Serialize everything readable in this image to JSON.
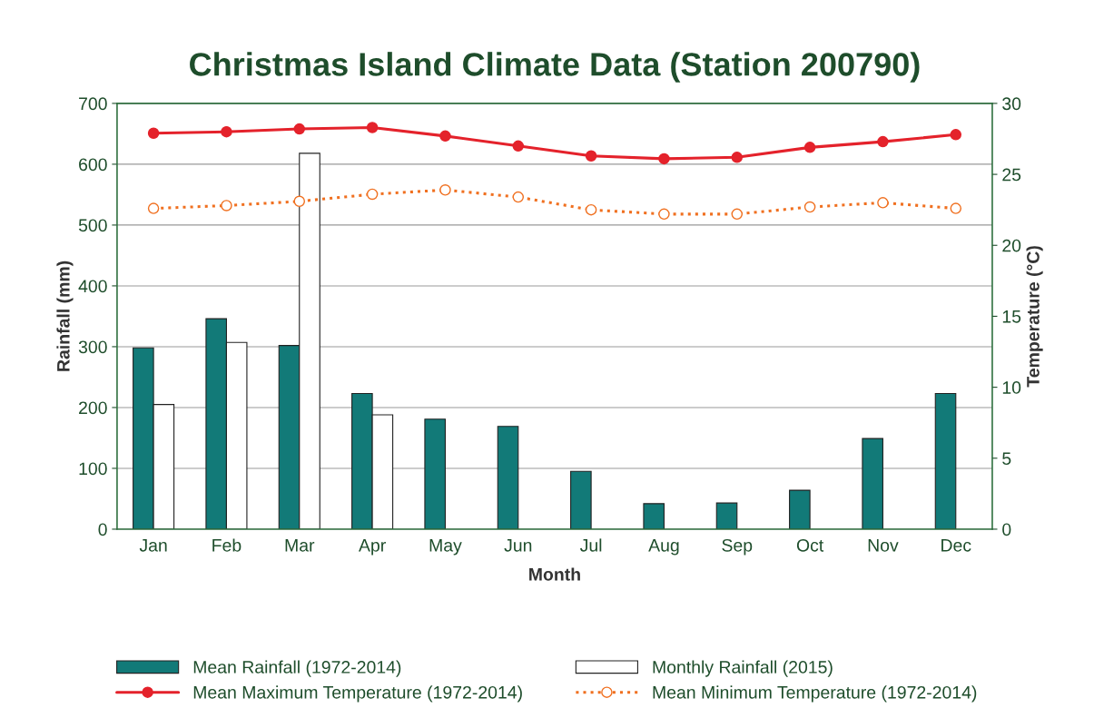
{
  "chart_data": {
    "type": "bar",
    "title": "Christmas Island Climate Data (Station 200790)",
    "xlabel": "Month",
    "ylabel": "Rainfall (mm)",
    "y2label": "Temperature (°C)",
    "categories": [
      "Jan",
      "Feb",
      "Mar",
      "Apr",
      "May",
      "Jun",
      "Jul",
      "Aug",
      "Sep",
      "Oct",
      "Nov",
      "Dec"
    ],
    "series": [
      {
        "name": "Mean Rainfall (1972-2014)",
        "color": "#127a78",
        "values": [
          298,
          346,
          302,
          223,
          181,
          169,
          95,
          42,
          43,
          64,
          149,
          223
        ]
      },
      {
        "name": "Monthly Rainfall (2015)",
        "color": "#ffffff",
        "values": [
          205,
          307,
          618,
          188,
          null,
          null,
          null,
          null,
          null,
          null,
          null,
          null
        ]
      },
      {
        "name": "Mean Maximum Temperature (1972-2014)",
        "type": "line",
        "axis": "y2",
        "color": "#e4222b",
        "marker": "circle",
        "line_style": "solid",
        "values": [
          27.9,
          28.0,
          28.2,
          28.3,
          27.7,
          27.0,
          26.3,
          26.1,
          26.2,
          26.9,
          27.3,
          27.8
        ]
      },
      {
        "name": "Mean Minimum Temperature (1972-2014)",
        "type": "line",
        "axis": "y2",
        "color": "#f07020",
        "marker": "circle",
        "line_style": "dotted",
        "values": [
          22.6,
          22.8,
          23.1,
          23.6,
          23.9,
          23.4,
          22.5,
          22.2,
          22.2,
          22.7,
          23.0,
          22.6
        ]
      }
    ],
    "ylim": [
      0,
      700
    ],
    "yticks": [
      0,
      100,
      200,
      300,
      400,
      500,
      600,
      700
    ],
    "y2lim": [
      0,
      30
    ],
    "y2ticks": [
      0,
      5,
      10,
      15,
      20,
      25,
      30
    ],
    "grid": "y",
    "legend": "bottom"
  }
}
